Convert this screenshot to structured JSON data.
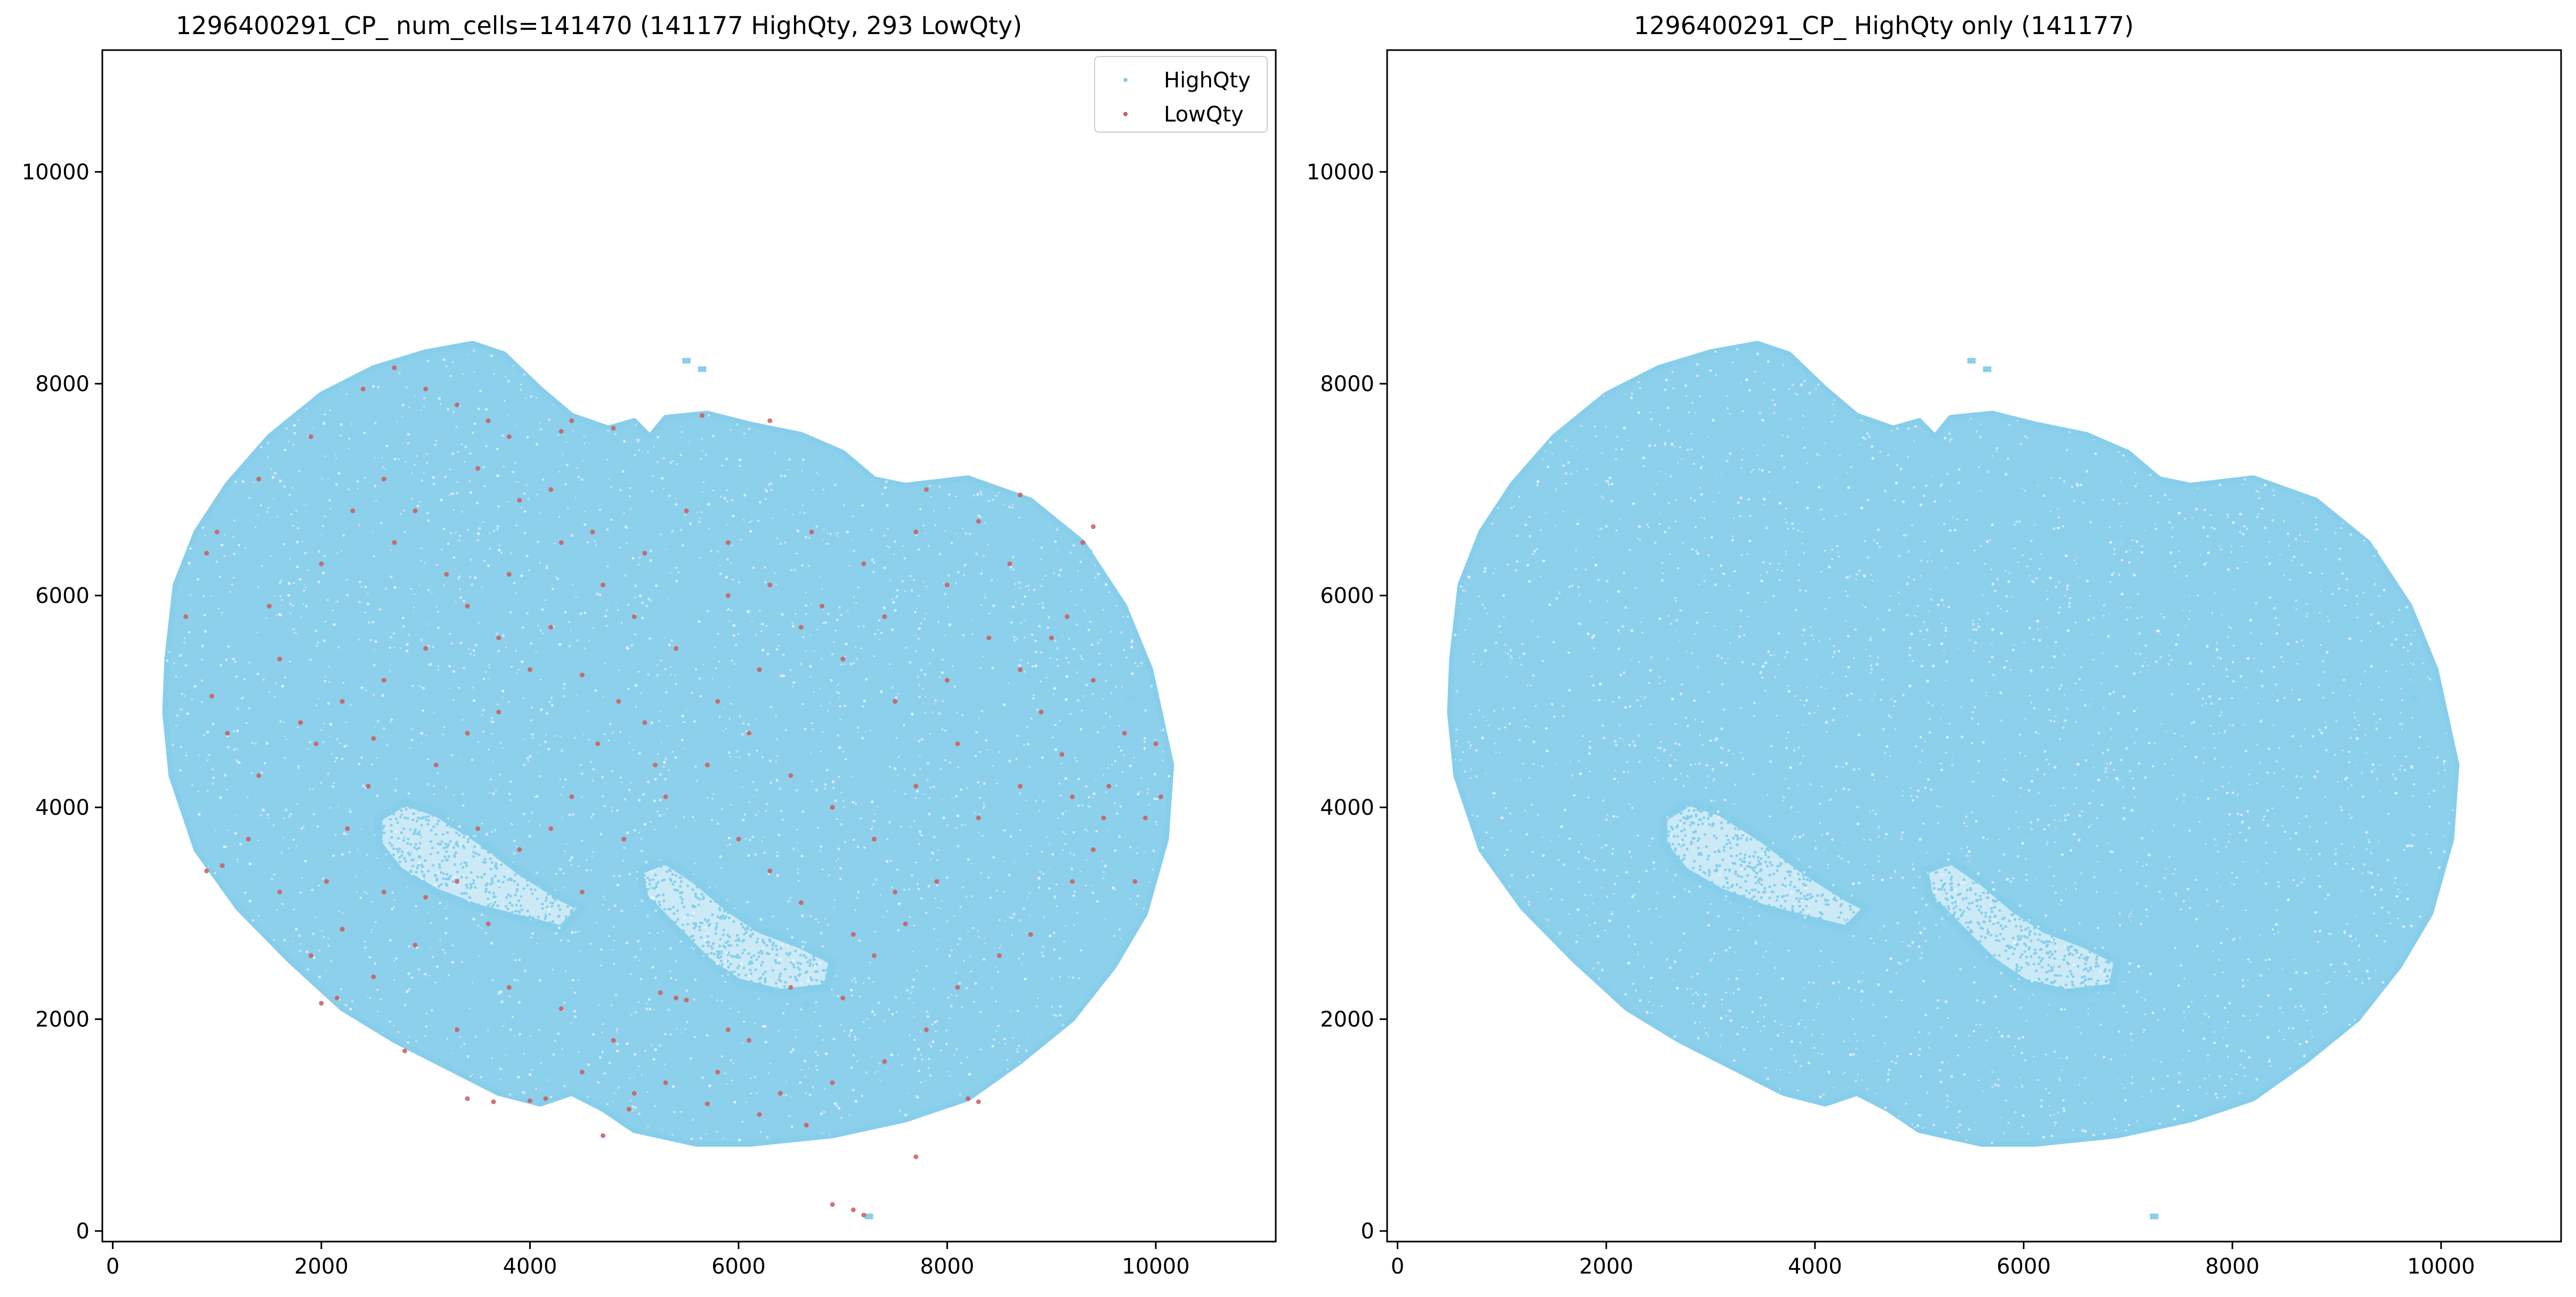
{
  "colors": {
    "highqty": "#87ceeb",
    "lowqty": "#cd5c5c",
    "axes": "#000000",
    "background": "#ffffff"
  },
  "chart_data": [
    {
      "type": "scatter",
      "title": "1296400291_CP_ num_cells=141470 (141177 HighQty, 293 LowQty)",
      "xlabel": "",
      "ylabel": "",
      "xlim": [
        -100,
        11150
      ],
      "ylim": [
        -100,
        11150
      ],
      "xticks": [
        0,
        2000,
        4000,
        6000,
        8000,
        10000
      ],
      "yticks": [
        0,
        2000,
        4000,
        6000,
        8000,
        10000
      ],
      "grid": false,
      "legend": {
        "placement": "top-right",
        "entries": [
          "HighQty",
          "LowQty"
        ]
      },
      "series": [
        {
          "name": "HighQty",
          "count": 141177,
          "color": "#87ceeb",
          "outline": [
            [
              520,
              5400
            ],
            [
              600,
              6100
            ],
            [
              800,
              6600
            ],
            [
              1100,
              7050
            ],
            [
              1500,
              7500
            ],
            [
              2000,
              7900
            ],
            [
              2500,
              8150
            ],
            [
              3000,
              8300
            ],
            [
              3450,
              8380
            ],
            [
              3750,
              8280
            ],
            [
              4100,
              7950
            ],
            [
              4400,
              7700
            ],
            [
              4750,
              7580
            ],
            [
              5000,
              7650
            ],
            [
              5150,
              7500
            ],
            [
              5300,
              7680
            ],
            [
              5700,
              7720
            ],
            [
              6100,
              7620
            ],
            [
              6600,
              7520
            ],
            [
              7000,
              7350
            ],
            [
              7300,
              7100
            ],
            [
              7600,
              7040
            ],
            [
              8200,
              7110
            ],
            [
              8800,
              6900
            ],
            [
              9300,
              6500
            ],
            [
              9700,
              5900
            ],
            [
              9950,
              5300
            ],
            [
              10150,
              4400
            ],
            [
              10100,
              3700
            ],
            [
              9900,
              3000
            ],
            [
              9600,
              2500
            ],
            [
              9200,
              2000
            ],
            [
              8700,
              1600
            ],
            [
              8200,
              1250
            ],
            [
              7600,
              1050
            ],
            [
              6900,
              900
            ],
            [
              6100,
              820
            ],
            [
              5600,
              820
            ],
            [
              5000,
              950
            ],
            [
              4700,
              1150
            ],
            [
              4400,
              1300
            ],
            [
              4100,
              1200
            ],
            [
              3700,
              1300
            ],
            [
              3200,
              1550
            ],
            [
              2700,
              1800
            ],
            [
              2200,
              2100
            ],
            [
              1700,
              2550
            ],
            [
              1200,
              3050
            ],
            [
              800,
              3600
            ],
            [
              560,
              4300
            ],
            [
              500,
              4900
            ]
          ],
          "excluded_regions": [
            [
              [
                2550,
                3900
              ],
              [
                2800,
                4050
              ],
              [
                3100,
                3950
              ],
              [
                3500,
                3700
              ],
              [
                3900,
                3400
              ],
              [
                4300,
                3150
              ],
              [
                4500,
                3050
              ],
              [
                4300,
                2850
              ],
              [
                3900,
                2950
              ],
              [
                3500,
                3050
              ],
              [
                3100,
                3200
              ],
              [
                2750,
                3400
              ],
              [
                2550,
                3650
              ]
            ],
            [
              [
                5050,
                3400
              ],
              [
                5300,
                3500
              ],
              [
                5600,
                3300
              ],
              [
                5900,
                3050
              ],
              [
                6200,
                2850
              ],
              [
                6600,
                2700
              ],
              [
                6900,
                2550
              ],
              [
                6850,
                2300
              ],
              [
                6400,
                2250
              ],
              [
                6000,
                2350
              ],
              [
                5700,
                2550
              ],
              [
                5400,
                2850
              ],
              [
                5100,
                3150
              ]
            ]
          ],
          "islands": [
            [
              5500,
              8230
            ],
            [
              5650,
              8150
            ],
            [
              6650,
              2150
            ],
            [
              7250,
              150
            ],
            [
              9350,
              6420
            ],
            [
              9750,
              5050
            ]
          ]
        },
        {
          "name": "LowQty",
          "count": 293,
          "color": "#cd5c5c",
          "points": [
            [
              2700,
              8150
            ],
            [
              2400,
              7950
            ],
            [
              1900,
              7500
            ],
            [
              1400,
              7100
            ],
            [
              1000,
              6600
            ],
            [
              900,
              6400
            ],
            [
              700,
              5800
            ],
            [
              950,
              5050
            ],
            [
              1100,
              4700
            ],
            [
              900,
              3400
            ],
            [
              1050,
              3450
            ],
            [
              2000,
              2150
            ],
            [
              2150,
              2200
            ],
            [
              3400,
              1250
            ],
            [
              3650,
              1220
            ],
            [
              4000,
              1230
            ],
            [
              4150,
              1250
            ],
            [
              4500,
              1500
            ],
            [
              4950,
              1150
            ],
            [
              5400,
              2200
            ],
            [
              5500,
              2180
            ],
            [
              5250,
              2250
            ],
            [
              5900,
              1900
            ],
            [
              6200,
              1100
            ],
            [
              6650,
              1000
            ],
            [
              7700,
              700
            ],
            [
              6900,
              250
            ],
            [
              7100,
              200
            ],
            [
              7200,
              150
            ],
            [
              8200,
              1250
            ],
            [
              8300,
              1220
            ],
            [
              8800,
              2800
            ],
            [
              9200,
              3300
            ],
            [
              9400,
              3600
            ],
            [
              9550,
              4200
            ],
            [
              9700,
              4700
            ],
            [
              9400,
              5200
            ],
            [
              9150,
              5800
            ],
            [
              9300,
              6500
            ],
            [
              9400,
              6650
            ],
            [
              8700,
              6950
            ],
            [
              8300,
              6700
            ],
            [
              7800,
              7000
            ],
            [
              6300,
              7650
            ],
            [
              5650,
              7700
            ],
            [
              4800,
              7580
            ],
            [
              4300,
              7550
            ],
            [
              4400,
              7650
            ],
            [
              3800,
              7500
            ],
            [
              3000,
              7950
            ],
            [
              3300,
              7800
            ],
            [
              3600,
              7650
            ],
            [
              2700,
              6500
            ],
            [
              3200,
              6200
            ],
            [
              3700,
              5600
            ],
            [
              4000,
              5300
            ],
            [
              4200,
              5700
            ],
            [
              4500,
              5250
            ],
            [
              4850,
              5000
            ],
            [
              5100,
              4800
            ],
            [
              4650,
              4600
            ],
            [
              4400,
              4100
            ],
            [
              4200,
              3800
            ],
            [
              3900,
              3600
            ],
            [
              3500,
              3800
            ],
            [
              3300,
              3300
            ],
            [
              3000,
              3150
            ],
            [
              2600,
              3200
            ],
            [
              2200,
              2850
            ],
            [
              2050,
              3300
            ],
            [
              2250,
              3800
            ],
            [
              2450,
              4200
            ],
            [
              2500,
              4650
            ],
            [
              1950,
              4600
            ],
            [
              1600,
              5400
            ],
            [
              1500,
              5900
            ],
            [
              2000,
              6300
            ],
            [
              2300,
              6800
            ],
            [
              2600,
              7100
            ],
            [
              2900,
              6800
            ],
            [
              3500,
              7200
            ],
            [
              3900,
              6900
            ],
            [
              4300,
              6500
            ],
            [
              4700,
              6100
            ],
            [
              5100,
              6400
            ],
            [
              5500,
              6800
            ],
            [
              5900,
              6500
            ],
            [
              6300,
              6100
            ],
            [
              6800,
              5900
            ],
            [
              7200,
              6300
            ],
            [
              7700,
              6600
            ],
            [
              8000,
              6100
            ],
            [
              8400,
              5600
            ],
            [
              8700,
              5300
            ],
            [
              8900,
              4900
            ],
            [
              9100,
              4500
            ],
            [
              8700,
              4200
            ],
            [
              8300,
              3900
            ],
            [
              7900,
              3300
            ],
            [
              7600,
              2900
            ],
            [
              7300,
              2600
            ],
            [
              7000,
              2200
            ],
            [
              6500,
              2300
            ],
            [
              6100,
              1800
            ],
            [
              5800,
              1500
            ],
            [
              5300,
              1400
            ],
            [
              4800,
              1800
            ],
            [
              4300,
              2100
            ],
            [
              3800,
              2300
            ],
            [
              3300,
              1900
            ],
            [
              2800,
              1700
            ],
            [
              2500,
              2400
            ],
            [
              2900,
              2700
            ],
            [
              3600,
              2900
            ],
            [
              4500,
              3200
            ],
            [
              4900,
              3700
            ],
            [
              5300,
              4100
            ],
            [
              5700,
              4400
            ],
            [
              6100,
              4700
            ],
            [
              6500,
              4300
            ],
            [
              6900,
              4000
            ],
            [
              7300,
              3700
            ],
            [
              7700,
              4200
            ],
            [
              8100,
              4600
            ],
            [
              8000,
              5200
            ],
            [
              7500,
              5000
            ],
            [
              7000,
              5400
            ],
            [
              6600,
              5700
            ],
            [
              6200,
              5300
            ],
            [
              5800,
              5000
            ],
            [
              5400,
              5500
            ],
            [
              5000,
              5800
            ],
            [
              4600,
              6600
            ],
            [
              4200,
              7000
            ],
            [
              3800,
              6200
            ],
            [
              3400,
              5900
            ],
            [
              3000,
              5500
            ],
            [
              2600,
              5200
            ],
            [
              2200,
              5000
            ],
            [
              1800,
              4800
            ],
            [
              1400,
              4300
            ],
            [
              1300,
              3700
            ],
            [
              1600,
              3200
            ],
            [
              1900,
              2600
            ],
            [
              3100,
              4400
            ],
            [
              3400,
              4700
            ],
            [
              3700,
              4900
            ],
            [
              6000,
              3700
            ],
            [
              6300,
              3400
            ],
            [
              6600,
              3100
            ],
            [
              7100,
              2800
            ],
            [
              7500,
              3200
            ],
            [
              8500,
              2600
            ],
            [
              8100,
              2300
            ],
            [
              7800,
              1900
            ],
            [
              7400,
              1600
            ],
            [
              6900,
              1400
            ],
            [
              6400,
              1300
            ],
            [
              5700,
              1200
            ],
            [
              5000,
              1300
            ],
            [
              4700,
              900
            ],
            [
              5200,
              4400
            ],
            [
              5900,
              6000
            ],
            [
              6700,
              6600
            ],
            [
              7400,
              5800
            ],
            [
              8600,
              6300
            ],
            [
              9000,
              5600
            ],
            [
              9200,
              4100
            ],
            [
              9500,
              3900
            ],
            [
              9800,
              3300
            ],
            [
              9900,
              3900
            ],
            [
              10000,
              4600
            ],
            [
              10050,
              4100
            ]
          ]
        }
      ]
    },
    {
      "type": "scatter",
      "title": "1296400291_CP_ HighQty only (141177)",
      "xlabel": "",
      "ylabel": "",
      "xlim": [
        -100,
        11150
      ],
      "ylim": [
        -100,
        11150
      ],
      "xticks": [
        0,
        2000,
        4000,
        6000,
        8000,
        10000
      ],
      "yticks": [
        0,
        2000,
        4000,
        6000,
        8000,
        10000
      ],
      "grid": false,
      "series": [
        {
          "count": 141177,
          "color": "#87ceeb"
        }
      ]
    }
  ]
}
